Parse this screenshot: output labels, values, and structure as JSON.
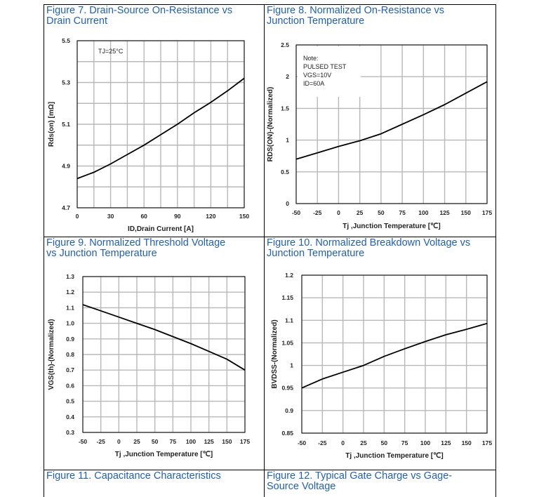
{
  "colors": {
    "caption": "#1f5fbf",
    "grid": "#b8b8b8",
    "line": "#000000",
    "border": "#000000"
  },
  "captions": {
    "fig7": "Figure 7. Drain-Source On-Resistance vs\nDrain Current",
    "fig8": "Figure 8. Normalized On-Resistance vs\nJunction Temperature",
    "fig9": "Figure 9. Normalized Threshold Voltage\nvs Junction Temperature",
    "fig10": "Figure 10. Normalized Breakdown Voltage vs\nJunction Temperature",
    "fig11": "Figure 11. Capacitance Characteristics",
    "fig12": "Figure 12. Typical Gate Charge vs Gage-\nSource Voltage"
  },
  "chart_data": [
    {
      "id": "fig7",
      "type": "line",
      "xlabel": "ID,Drain Current [A]",
      "ylabel": "Rds(on) [mΩ]",
      "xlim": [
        0,
        150
      ],
      "ylim": [
        4.7,
        5.5
      ],
      "xticks": [
        0,
        30,
        60,
        90,
        120,
        150
      ],
      "xtick_labels": [
        "0",
        "30",
        "60",
        "90",
        "120",
        "150"
      ],
      "yticks": [
        4.7,
        4.9,
        5.1,
        5.3,
        5.5
      ],
      "ytick_labels": [
        "4.7",
        "4.9",
        "5.1",
        "5.3",
        "5.5"
      ],
      "xgrid": [
        0,
        15,
        30,
        45,
        60,
        75,
        90,
        105,
        120,
        135,
        150
      ],
      "ygrid": [
        4.7,
        4.8,
        4.9,
        5.0,
        5.1,
        5.2,
        5.3,
        5.4,
        5.5
      ],
      "annotation": [
        "TJ=25°C"
      ],
      "series": [
        {
          "x": [
            0,
            15,
            30,
            45,
            60,
            75,
            90,
            105,
            120,
            135,
            150
          ],
          "y": [
            4.84,
            4.87,
            4.91,
            4.955,
            5.0,
            5.05,
            5.1,
            5.155,
            5.205,
            5.26,
            5.32
          ]
        }
      ]
    },
    {
      "id": "fig8",
      "type": "line",
      "xlabel": "Tj ,Junction Temperature [℃]",
      "ylabel": "RDS(ON)-(Normalized)",
      "xlim": [
        -50,
        175
      ],
      "ylim": [
        0,
        2.5
      ],
      "xticks": [
        -50,
        -25,
        0,
        25,
        50,
        75,
        100,
        125,
        150,
        175
      ],
      "xtick_labels": [
        "-50",
        "-25",
        "0",
        "25",
        "50",
        "75",
        "100",
        "125",
        "150",
        "175"
      ],
      "yticks": [
        0,
        0.5,
        1,
        1.5,
        2,
        2.5
      ],
      "ytick_labels": [
        "0",
        "0.5",
        "1",
        "1.5",
        "2",
        "2.5"
      ],
      "xgrid": [
        -50,
        -25,
        0,
        25,
        50,
        75,
        100,
        125,
        150,
        175
      ],
      "ygrid": [
        0,
        0.5,
        1,
        1.5,
        2,
        2.5
      ],
      "annotation": [
        "Note:",
        "PULSED TEST",
        "VGS=10V",
        "ID=60A"
      ],
      "series": [
        {
          "x": [
            -50,
            -25,
            0,
            25,
            50,
            75,
            100,
            125,
            150,
            175
          ],
          "y": [
            0.7,
            0.8,
            0.9,
            0.99,
            1.1,
            1.25,
            1.4,
            1.56,
            1.74,
            1.92
          ]
        }
      ]
    },
    {
      "id": "fig9",
      "type": "line",
      "xlabel": "Tj ,Junction Temperature [℃]",
      "ylabel": "VGS(th)-(Normalized)",
      "xlim": [
        -50,
        175
      ],
      "ylim": [
        0.3,
        1.3
      ],
      "xticks": [
        -50,
        -25,
        0,
        25,
        50,
        75,
        100,
        125,
        150,
        175
      ],
      "xtick_labels": [
        "-50",
        "-25",
        "0",
        "25",
        "50",
        "75",
        "100",
        "125",
        "150",
        "175"
      ],
      "yticks": [
        0.3,
        0.4,
        0.5,
        0.6,
        0.7,
        0.8,
        0.9,
        1.0,
        1.1,
        1.2,
        1.3
      ],
      "ytick_labels": [
        "0.3",
        "0.4",
        "0.5",
        "0.6",
        "0.7",
        "0.8",
        "0.9",
        "1.0",
        "1.1",
        "1.2",
        "1.3"
      ],
      "xgrid": [
        -50,
        -25,
        0,
        25,
        50,
        75,
        100,
        125,
        150,
        175
      ],
      "ygrid": [
        0.3,
        0.4,
        0.5,
        0.6,
        0.7,
        0.8,
        0.9,
        1.0,
        1.1,
        1.2,
        1.3
      ],
      "annotation": [],
      "series": [
        {
          "x": [
            -50,
            -25,
            0,
            25,
            50,
            75,
            100,
            125,
            150,
            175
          ],
          "y": [
            1.12,
            1.08,
            1.04,
            1.0,
            0.96,
            0.915,
            0.87,
            0.82,
            0.77,
            0.7
          ]
        }
      ]
    },
    {
      "id": "fig10",
      "type": "line",
      "xlabel": "Tj ,Junction Temperature [℃]",
      "ylabel": "BVDSS-(Normalized)",
      "xlim": [
        -50,
        175
      ],
      "ylim": [
        0.85,
        1.2
      ],
      "xticks": [
        -50,
        -25,
        0,
        25,
        50,
        75,
        100,
        125,
        150,
        175
      ],
      "xtick_labels": [
        "-50",
        "-25",
        "0",
        "25",
        "50",
        "75",
        "100",
        "125",
        "150",
        "175"
      ],
      "yticks": [
        0.85,
        0.9,
        0.95,
        1,
        1.05,
        1.1,
        1.15,
        1.2
      ],
      "ytick_labels": [
        "0.85",
        "0.9",
        "0.95",
        "1",
        "1.05",
        "1.1",
        "1.15",
        "1.2"
      ],
      "xgrid": [
        -50,
        -25,
        0,
        25,
        50,
        75,
        100,
        125,
        150,
        175
      ],
      "ygrid": [
        0.85,
        0.9,
        0.95,
        1,
        1.05,
        1.1,
        1.15,
        1.2
      ],
      "annotation": [],
      "series": [
        {
          "x": [
            -50,
            -25,
            0,
            25,
            50,
            75,
            100,
            125,
            150,
            175
          ],
          "y": [
            0.95,
            0.97,
            0.985,
            1.0,
            1.02,
            1.037,
            1.053,
            1.068,
            1.08,
            1.093
          ]
        }
      ]
    }
  ]
}
